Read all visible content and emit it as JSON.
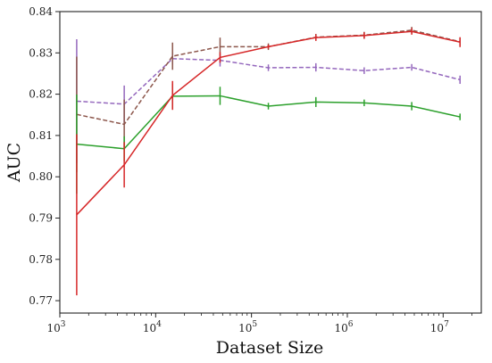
{
  "chart_data": {
    "type": "line",
    "xlabel": "Dataset Size",
    "ylabel": "AUC",
    "xscale": "log",
    "xlim": [
      1000,
      25000000
    ],
    "ylim": [
      0.767,
      0.84
    ],
    "grid": false,
    "legend": "none",
    "x_ticks": [
      {
        "value": 1000,
        "base": "10",
        "exp": "3"
      },
      {
        "value": 10000,
        "base": "10",
        "exp": "4"
      },
      {
        "value": 100000,
        "base": "10",
        "exp": "5"
      },
      {
        "value": 1000000,
        "base": "10",
        "exp": "6"
      },
      {
        "value": 10000000,
        "base": "10",
        "exp": "7"
      }
    ],
    "y_ticks": [
      {
        "value": 0.77,
        "label": "0.77"
      },
      {
        "value": 0.78,
        "label": "0.78"
      },
      {
        "value": 0.79,
        "label": "0.79"
      },
      {
        "value": 0.8,
        "label": "0.80"
      },
      {
        "value": 0.81,
        "label": "0.81"
      },
      {
        "value": 0.82,
        "label": "0.82"
      },
      {
        "value": 0.83,
        "label": "0.83"
      },
      {
        "value": 0.84,
        "label": "0.84"
      }
    ],
    "x": [
      1500,
      4700,
      15000,
      47000,
      150000,
      470000,
      1500000,
      4700000,
      15000000
    ],
    "series": [
      {
        "color": "#9467bd",
        "dash": "dashed",
        "values": [
          0.8183,
          0.8176,
          0.8286,
          0.8282,
          0.8264,
          0.8265,
          0.8257,
          0.8265,
          0.8235
        ],
        "errors": [
          0.015,
          0.0045,
          0.0015,
          0.0015,
          0.0008,
          0.001,
          0.0008,
          0.0008,
          0.001
        ]
      },
      {
        "color": "#8c564b",
        "dash": "dashed",
        "values": [
          0.8151,
          0.8127,
          0.8292,
          0.8315,
          0.8315,
          0.8338,
          0.8343,
          0.8355,
          0.8327
        ],
        "errors": [
          0.014,
          0.006,
          0.0033,
          0.0022,
          0.0008,
          0.0008,
          0.0008,
          0.0008,
          0.001
        ]
      },
      {
        "color": "#2ca02c",
        "dash": "solid",
        "values": [
          0.8079,
          0.8068,
          0.8195,
          0.8196,
          0.8171,
          0.8181,
          0.8179,
          0.8171,
          0.8145
        ],
        "errors": [
          0.012,
          0.003,
          0.003,
          0.0022,
          0.0008,
          0.0012,
          0.0008,
          0.001,
          0.0008
        ]
      },
      {
        "color": "#d62728",
        "dash": "solid",
        "values": [
          0.7908,
          0.8029,
          0.8197,
          0.8289,
          0.8315,
          0.8337,
          0.8342,
          0.8352,
          0.8326
        ],
        "errors": [
          0.0195,
          0.0055,
          0.0035,
          0.0013,
          0.0005,
          0.0008,
          0.0008,
          0.0008,
          0.0012
        ]
      }
    ]
  }
}
